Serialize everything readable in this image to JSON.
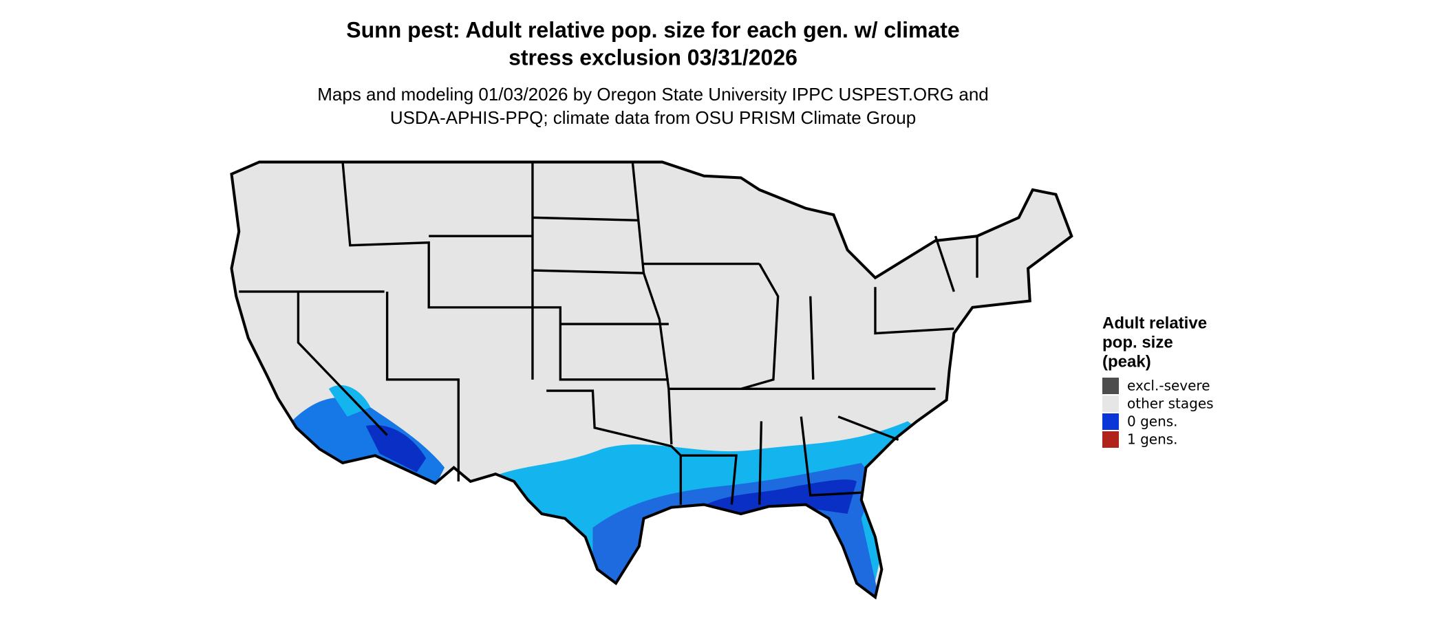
{
  "header": {
    "title": [
      "Sunn pest: Adult relative pop. size for each gen. w/ climate",
      "stress exclusion 03/31/2026"
    ],
    "subtitle": [
      "Maps and modeling 01/03/2026 by Oregon State University IPPC USPEST.ORG and",
      "USDA-APHIS-PPQ; climate data from OSU PRISM Climate Group"
    ]
  },
  "legend": {
    "title": [
      "Adult relative",
      "pop. size",
      "(peak)"
    ],
    "items": [
      {
        "label": "excl.-severe",
        "color": "#4d4d4d"
      },
      {
        "label": "other stages",
        "color": "#e6e6e6"
      },
      {
        "label": "0 gens.",
        "color": "#0a36d8"
      },
      {
        "label": "1 gens.",
        "color": "#b0231b"
      }
    ]
  }
}
